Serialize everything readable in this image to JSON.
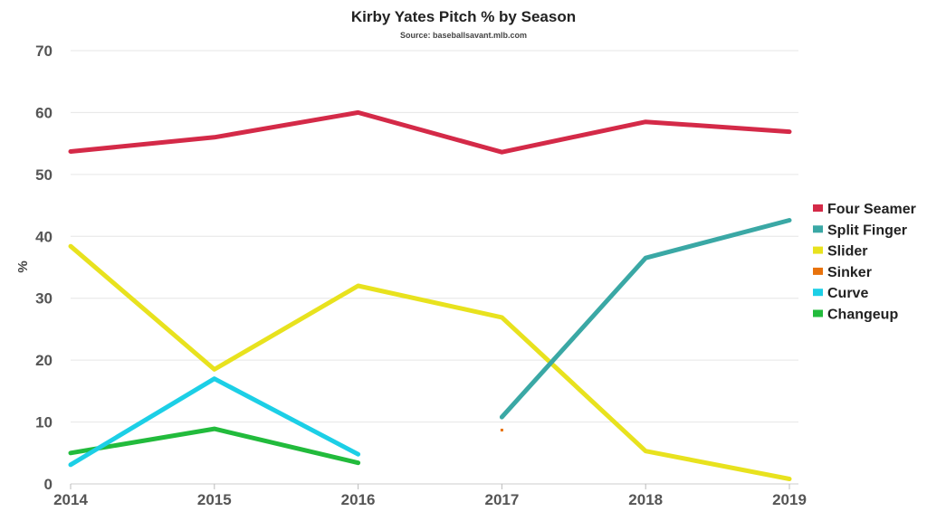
{
  "chart_data": {
    "type": "line",
    "title": "Kirby Yates Pitch % by Season",
    "subtitle": "Source: baseballsavant.mlb.com",
    "xlabel": "",
    "ylabel": "%",
    "categories": [
      "2014",
      "2015",
      "2016",
      "2017",
      "2018",
      "2019"
    ],
    "yticks": [
      "0",
      "10",
      "20",
      "30",
      "40",
      "50",
      "60",
      "70"
    ],
    "ylim": [
      0,
      70
    ],
    "grid": true,
    "legend_position": "right",
    "series": [
      {
        "name": "Four Seamer",
        "color": "#d42a48",
        "values": [
          53.7,
          56.0,
          60.0,
          53.6,
          58.5,
          56.9
        ]
      },
      {
        "name": "Split Finger",
        "color": "#3aa8a5",
        "values": [
          null,
          null,
          null,
          10.8,
          36.5,
          42.6
        ]
      },
      {
        "name": "Slider",
        "color": "#e8e21e",
        "values": [
          38.4,
          18.5,
          32.0,
          26.9,
          5.3,
          0.8
        ]
      },
      {
        "name": "Sinker",
        "color": "#e8720c",
        "values": [
          null,
          null,
          null,
          8.7,
          null,
          null
        ]
      },
      {
        "name": "Curve",
        "color": "#1ccfe6",
        "values": [
          3.1,
          17.0,
          4.8,
          null,
          null,
          null
        ]
      },
      {
        "name": "Changeup",
        "color": "#22bb3c",
        "values": [
          5.0,
          8.9,
          3.4,
          null,
          null,
          null
        ]
      }
    ]
  }
}
